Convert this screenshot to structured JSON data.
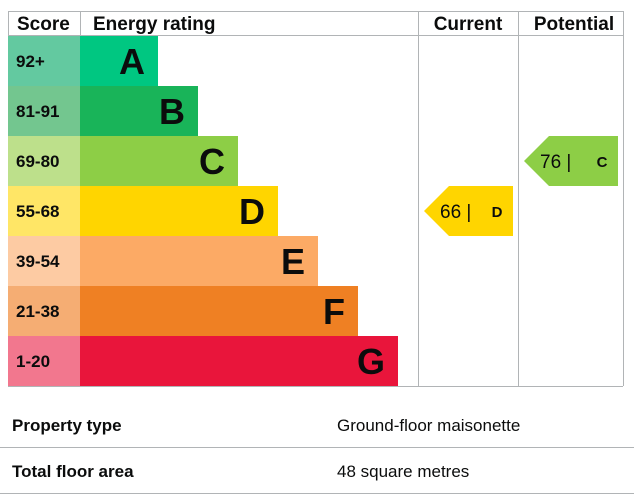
{
  "headers": {
    "score": "Score",
    "rating": "Energy rating",
    "current": "Current",
    "potential": "Potential"
  },
  "chart_data": {
    "type": "bar",
    "title": "",
    "categories": [
      "92+",
      "81-91",
      "69-80",
      "55-68",
      "39-54",
      "21-38",
      "1-20"
    ],
    "letters": [
      "A",
      "B",
      "C",
      "D",
      "E",
      "F",
      "G"
    ],
    "bar_colors": [
      "#00c781",
      "#19b459",
      "#8dce46",
      "#ffd500",
      "#fcaa65",
      "#ef8023",
      "#e9153b"
    ],
    "score_colors": [
      "#63c9a0",
      "#73c68f",
      "#bde08b",
      "#ffe666",
      "#fdcba3",
      "#f5ad73",
      "#f2778e"
    ],
    "current": {
      "value": 66,
      "band": "D",
      "label": "66 |",
      "color": "#ffd500"
    },
    "potential": {
      "value": 76,
      "band": "C",
      "label": "76 |",
      "color": "#8dce46"
    }
  },
  "summary": [
    {
      "label": "Property type",
      "value": "Ground-floor maisonette"
    },
    {
      "label": "Total floor area",
      "value": "48 square metres"
    }
  ]
}
